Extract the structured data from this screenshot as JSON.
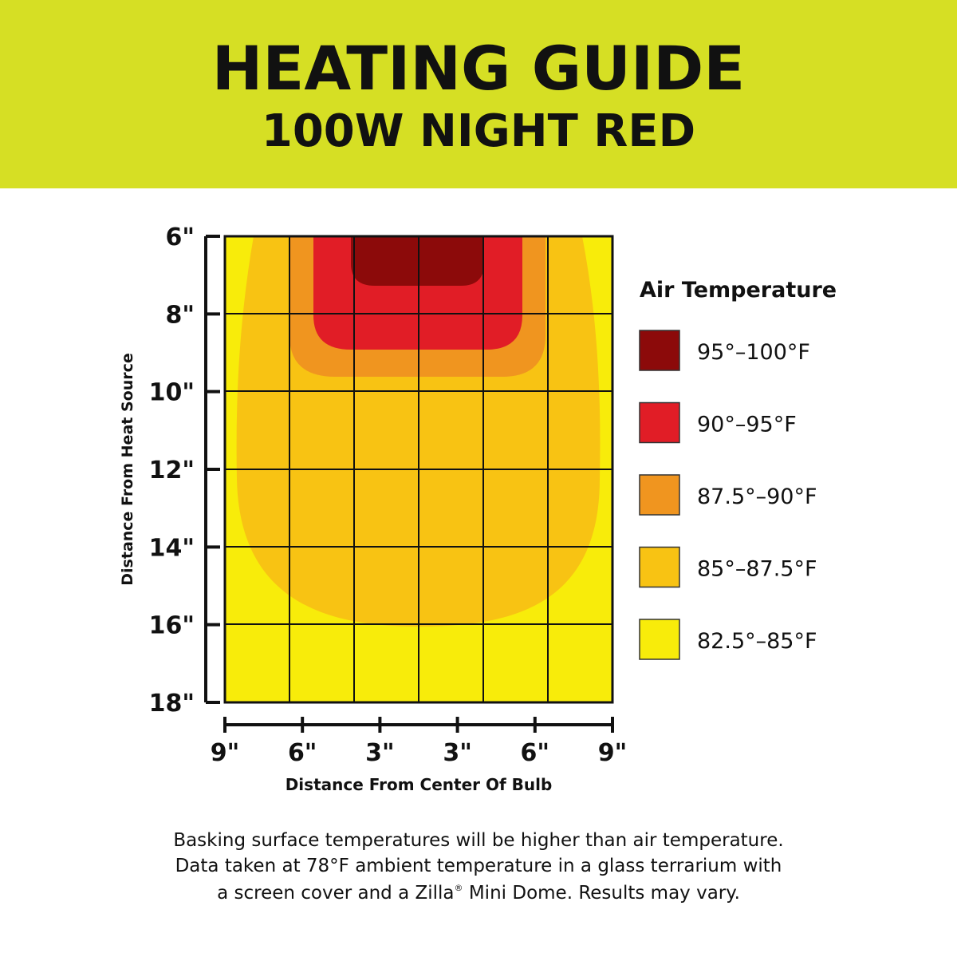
{
  "header": {
    "title": "HEATING GUIDE",
    "subtitle": "100W NIGHT RED"
  },
  "y_axis": {
    "label": "Distance From Heat Source",
    "ticks": [
      "6\"",
      "8\"",
      "10\"",
      "12\"",
      "14\"",
      "16\"",
      "18\""
    ]
  },
  "x_axis": {
    "label": "Distance From Center Of Bulb",
    "ticks": [
      "9\"",
      "6\"",
      "3\"",
      "3\"",
      "6\"",
      "9\""
    ]
  },
  "legend": {
    "title": "Air Temperature",
    "items": [
      {
        "label": "95°–100°F",
        "color": "#8c0a0a"
      },
      {
        "label": "90°–95°F",
        "color": "#e11d26"
      },
      {
        "label": "87.5°–90°F",
        "color": "#f0951f"
      },
      {
        "label": "85°–87.5°F",
        "color": "#f8c313"
      },
      {
        "label": "82.5°–85°F",
        "color": "#f8ec0a"
      }
    ]
  },
  "footnote": {
    "lines": [
      "Basking surface temperatures will be higher than air temperature.",
      "Data taken at 78°F ambient temperature in a glass terrarium with"
    ],
    "last_line": {
      "before": "a screen cover and a Zilla",
      "mark": "®",
      "after": " Mini Dome. Results may vary."
    }
  }
}
